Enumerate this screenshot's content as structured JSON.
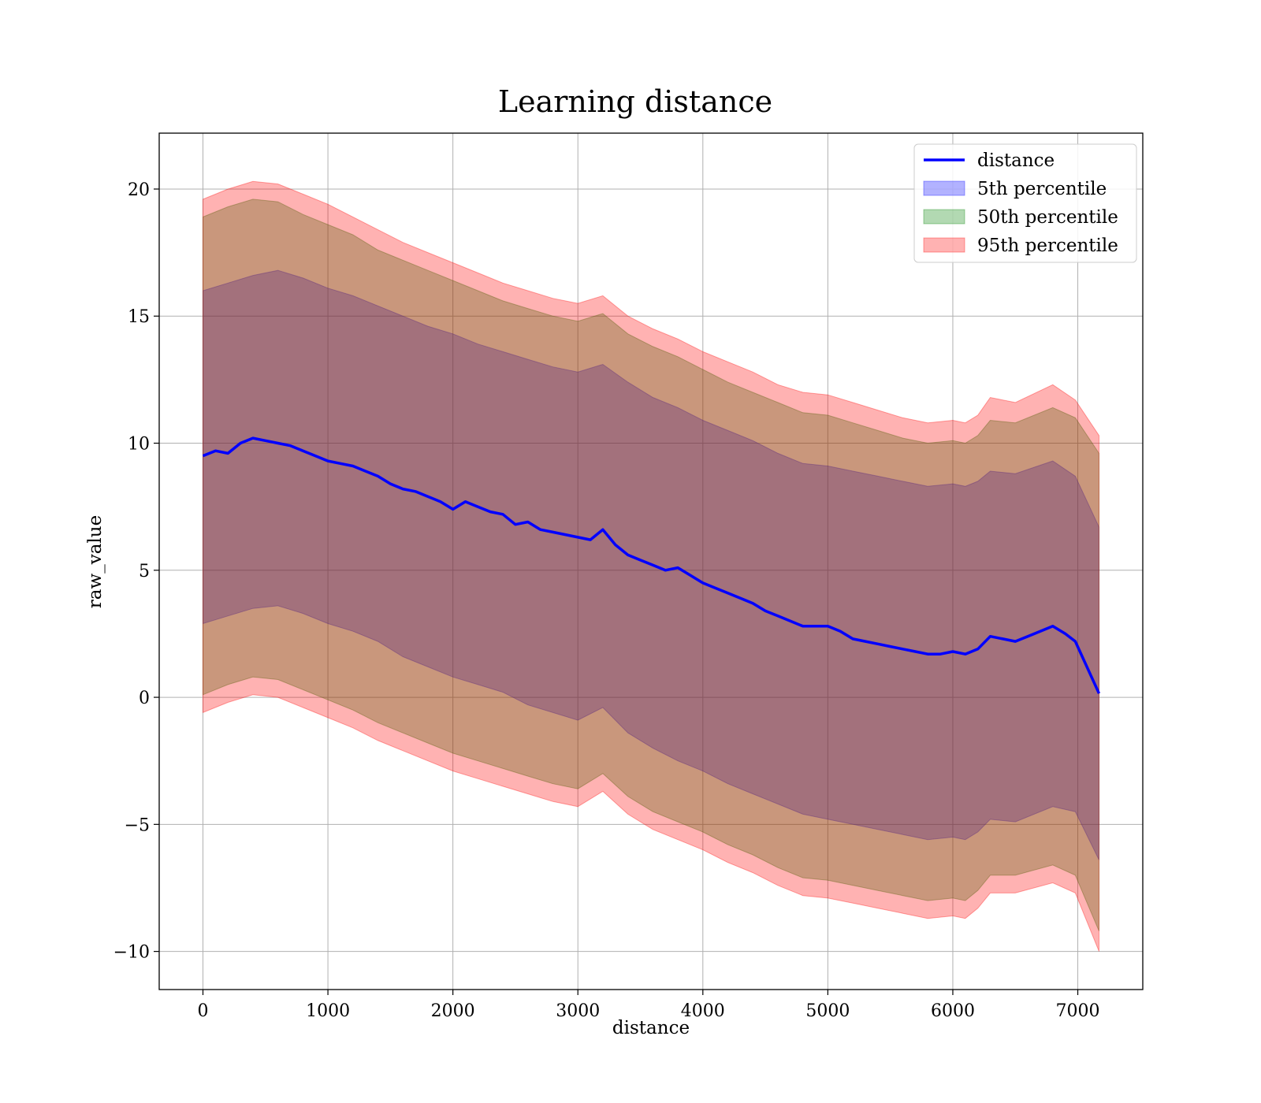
{
  "chart_data": {
    "type": "line",
    "title": "Learning distance",
    "xlabel": "distance",
    "ylabel": "raw_value",
    "xlim": [
      -350,
      7520
    ],
    "ylim": [
      -11.5,
      22.2
    ],
    "xticks": [
      0,
      1000,
      2000,
      3000,
      4000,
      5000,
      6000,
      7000
    ],
    "yticks": [
      -10,
      -5,
      0,
      5,
      10,
      15,
      20
    ],
    "xtick_labels": [
      "0",
      "1000",
      "2000",
      "3000",
      "4000",
      "5000",
      "6000",
      "7000"
    ],
    "ytick_labels": [
      "−10",
      "−5",
      "0",
      "5",
      "10",
      "15",
      "20"
    ],
    "grid": true,
    "legend_position": "top-right",
    "line": {
      "name": "distance",
      "color": "#0000ff",
      "x": [
        0,
        100,
        200,
        300,
        400,
        500,
        600,
        700,
        800,
        900,
        1000,
        1100,
        1200,
        1300,
        1400,
        1500,
        1600,
        1700,
        1800,
        1900,
        2000,
        2100,
        2200,
        2300,
        2400,
        2500,
        2600,
        2700,
        2800,
        2900,
        3000,
        3100,
        3200,
        3300,
        3400,
        3500,
        3600,
        3700,
        3800,
        3900,
        4000,
        4100,
        4200,
        4300,
        4400,
        4500,
        4600,
        4700,
        4800,
        4900,
        5000,
        5100,
        5200,
        5300,
        5400,
        5500,
        5600,
        5700,
        5800,
        5900,
        6000,
        6100,
        6200,
        6300,
        6400,
        6500,
        6600,
        6700,
        6800,
        6900,
        6980,
        7170
      ],
      "y": [
        9.5,
        9.7,
        9.6,
        10.0,
        10.2,
        10.1,
        10.0,
        9.9,
        9.7,
        9.5,
        9.3,
        9.2,
        9.1,
        8.9,
        8.7,
        8.4,
        8.2,
        8.1,
        7.9,
        7.7,
        7.4,
        7.7,
        7.5,
        7.3,
        7.2,
        6.8,
        6.9,
        6.6,
        6.5,
        6.4,
        6.3,
        6.2,
        6.6,
        6.0,
        5.6,
        5.4,
        5.2,
        5.0,
        5.1,
        4.8,
        4.5,
        4.3,
        4.1,
        3.9,
        3.7,
        3.4,
        3.2,
        3.0,
        2.8,
        2.8,
        2.8,
        2.6,
        2.3,
        2.2,
        2.1,
        2.0,
        1.9,
        1.8,
        1.7,
        1.7,
        1.8,
        1.7,
        1.9,
        2.4,
        2.3,
        2.2,
        2.4,
        2.6,
        2.8,
        2.5,
        2.2,
        0.15
      ]
    },
    "series": [
      {
        "name": "5th percentile",
        "color": "#0000ff",
        "opacity": 0.3,
        "x": [
          0,
          200,
          400,
          600,
          800,
          1000,
          1200,
          1400,
          1600,
          1800,
          2000,
          2200,
          2400,
          2600,
          2800,
          3000,
          3200,
          3400,
          3600,
          3800,
          4000,
          4200,
          4400,
          4600,
          4800,
          5000,
          5200,
          5400,
          5600,
          5800,
          6000,
          6100,
          6200,
          6300,
          6500,
          6800,
          6980,
          7170
        ],
        "upper": [
          16.0,
          16.3,
          16.6,
          16.8,
          16.5,
          16.1,
          15.8,
          15.4,
          15.0,
          14.6,
          14.3,
          13.9,
          13.6,
          13.3,
          13.0,
          12.8,
          13.1,
          12.4,
          11.8,
          11.4,
          10.9,
          10.5,
          10.1,
          9.6,
          9.2,
          9.1,
          8.9,
          8.7,
          8.5,
          8.3,
          8.4,
          8.3,
          8.5,
          8.9,
          8.8,
          9.3,
          8.7,
          6.7
        ],
        "lower": [
          2.9,
          3.2,
          3.5,
          3.6,
          3.3,
          2.9,
          2.6,
          2.2,
          1.6,
          1.2,
          0.8,
          0.5,
          0.2,
          -0.3,
          -0.6,
          -0.9,
          -0.4,
          -1.4,
          -2.0,
          -2.5,
          -2.9,
          -3.4,
          -3.8,
          -4.2,
          -4.6,
          -4.8,
          -5.0,
          -5.2,
          -5.4,
          -5.6,
          -5.5,
          -5.6,
          -5.3,
          -4.8,
          -4.9,
          -4.3,
          -4.5,
          -6.4
        ]
      },
      {
        "name": "50th percentile",
        "color": "#008000",
        "opacity": 0.3,
        "x": [
          0,
          200,
          400,
          600,
          800,
          1000,
          1200,
          1400,
          1600,
          1800,
          2000,
          2200,
          2400,
          2600,
          2800,
          3000,
          3200,
          3400,
          3600,
          3800,
          4000,
          4200,
          4400,
          4600,
          4800,
          5000,
          5200,
          5400,
          5600,
          5800,
          6000,
          6100,
          6200,
          6300,
          6500,
          6800,
          6980,
          7170
        ],
        "upper": [
          18.9,
          19.3,
          19.6,
          19.5,
          19.0,
          18.6,
          18.2,
          17.6,
          17.2,
          16.8,
          16.4,
          16.0,
          15.6,
          15.3,
          15.0,
          14.8,
          15.1,
          14.3,
          13.8,
          13.4,
          12.9,
          12.4,
          12.0,
          11.6,
          11.2,
          11.1,
          10.8,
          10.5,
          10.2,
          10.0,
          10.1,
          10.0,
          10.3,
          10.9,
          10.8,
          11.4,
          11.0,
          9.6
        ],
        "lower": [
          0.1,
          0.5,
          0.8,
          0.7,
          0.3,
          -0.1,
          -0.5,
          -1.0,
          -1.4,
          -1.8,
          -2.2,
          -2.5,
          -2.8,
          -3.1,
          -3.4,
          -3.6,
          -3.0,
          -3.9,
          -4.5,
          -4.9,
          -5.3,
          -5.8,
          -6.2,
          -6.7,
          -7.1,
          -7.2,
          -7.4,
          -7.6,
          -7.8,
          -8.0,
          -7.9,
          -8.0,
          -7.6,
          -7.0,
          -7.0,
          -6.6,
          -7.0,
          -9.2
        ]
      },
      {
        "name": "95th percentile",
        "color": "#ff0000",
        "opacity": 0.3,
        "x": [
          0,
          200,
          400,
          600,
          800,
          1000,
          1200,
          1400,
          1600,
          1800,
          2000,
          2200,
          2400,
          2600,
          2800,
          3000,
          3200,
          3400,
          3600,
          3800,
          4000,
          4200,
          4400,
          4600,
          4800,
          5000,
          5200,
          5400,
          5600,
          5800,
          6000,
          6100,
          6200,
          6300,
          6500,
          6800,
          6980,
          7170
        ],
        "upper": [
          19.6,
          20.0,
          20.3,
          20.2,
          19.8,
          19.4,
          18.9,
          18.4,
          17.9,
          17.5,
          17.1,
          16.7,
          16.3,
          16.0,
          15.7,
          15.5,
          15.8,
          15.0,
          14.5,
          14.1,
          13.6,
          13.2,
          12.8,
          12.3,
          12.0,
          11.9,
          11.6,
          11.3,
          11.0,
          10.8,
          10.9,
          10.8,
          11.1,
          11.8,
          11.6,
          12.3,
          11.7,
          10.3
        ],
        "lower": [
          -0.6,
          -0.2,
          0.1,
          0.0,
          -0.4,
          -0.8,
          -1.2,
          -1.7,
          -2.1,
          -2.5,
          -2.9,
          -3.2,
          -3.5,
          -3.8,
          -4.1,
          -4.3,
          -3.7,
          -4.6,
          -5.2,
          -5.6,
          -6.0,
          -6.5,
          -6.9,
          -7.4,
          -7.8,
          -7.9,
          -8.1,
          -8.3,
          -8.5,
          -8.7,
          -8.6,
          -8.7,
          -8.3,
          -7.7,
          -7.7,
          -7.3,
          -7.7,
          -10.0
        ]
      }
    ]
  }
}
